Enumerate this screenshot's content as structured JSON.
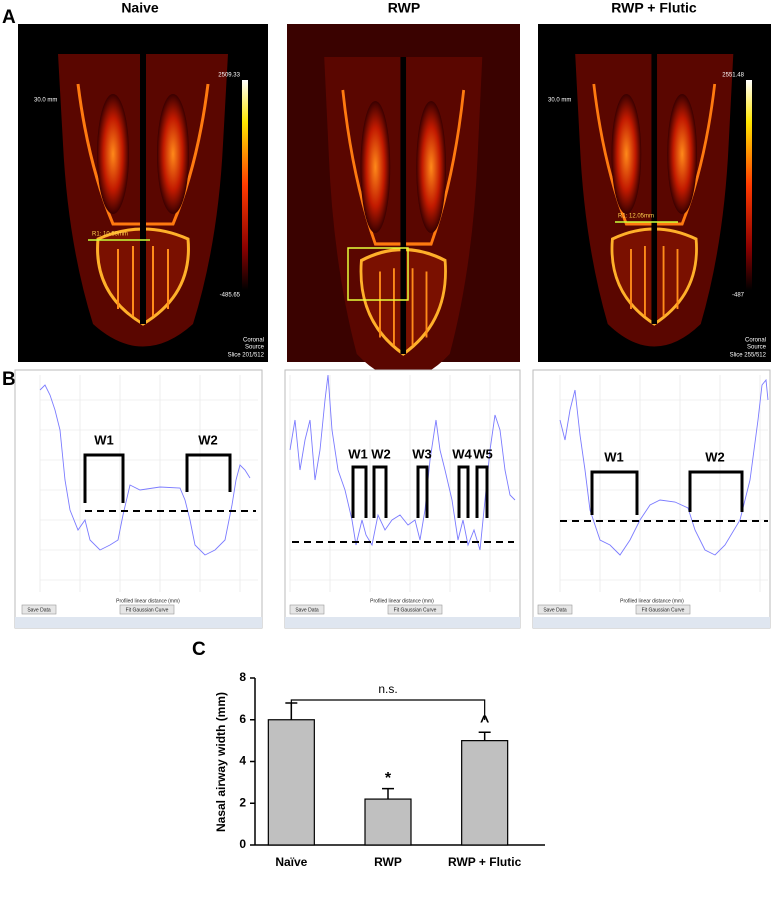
{
  "panel_a": {
    "label": "A",
    "images": [
      {
        "title": "Naive",
        "scale_max": "2509.33",
        "scale_min": "-485.65",
        "scale_length": "30.0 mm",
        "measurement": "R1: 10.59mm",
        "view": "Coronal",
        "source": "Source",
        "slice": "Slice 201/512"
      },
      {
        "title": "RWP"
      },
      {
        "title": "RWP + Flutic",
        "scale_max": "2551.48",
        "scale_min": "-487",
        "scale_length": "30.0 mm",
        "measurement": "R1: 12.05mm",
        "view": "Coronal",
        "source": "Source",
        "slice": "Slice 255/512"
      }
    ]
  },
  "panel_b": {
    "label": "B",
    "x_label": "Profiled linear distance (mm)",
    "buttons": [
      "Save Data",
      "Fit Gaussian Curve"
    ],
    "plots": [
      {
        "width_labels": [
          "W1",
          "W2"
        ]
      },
      {
        "width_labels": [
          "W1",
          "W2",
          "W3",
          "W4",
          "W5"
        ]
      },
      {
        "width_labels": [
          "W1",
          "W2"
        ]
      }
    ]
  },
  "panel_c": {
    "label": "C"
  },
  "chart_data": {
    "type": "bar",
    "y_label": "Nasal airway width (mm)",
    "categories": [
      "Naïve",
      "RWP",
      "RWP + Flutic"
    ],
    "values": [
      6.0,
      2.2,
      5.0
    ],
    "errors": [
      0.8,
      0.5,
      0.4
    ],
    "significance": [
      null,
      "*",
      "^"
    ],
    "bracket_label": "n.s.",
    "color": "#c0c0c0",
    "ylim": [
      0,
      8
    ],
    "yticks": [
      0,
      2,
      4,
      6,
      8
    ]
  }
}
